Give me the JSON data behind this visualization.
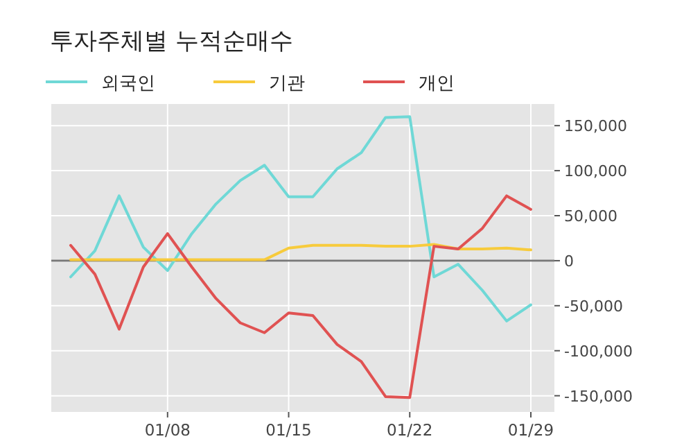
{
  "chart_data": {
    "type": "line",
    "title": "투자주체별 누적순매수",
    "categories": [
      null,
      null,
      null,
      null,
      "01/08",
      null,
      null,
      null,
      null,
      "01/15",
      null,
      null,
      null,
      null,
      "01/22",
      null,
      null,
      null,
      null,
      "01/29"
    ],
    "series": [
      {
        "name": "외국인",
        "color": "#6fd8d6",
        "values": [
          -18000,
          11000,
          72000,
          15000,
          -11000,
          30000,
          63000,
          89000,
          106000,
          71000,
          71000,
          102000,
          120000,
          159000,
          160000,
          -18000,
          -4000,
          -33000,
          -67000,
          -49000
        ]
      },
      {
        "name": "기관",
        "color": "#f7cb3c",
        "values": [
          1000,
          1000,
          1000,
          1000,
          1000,
          1000,
          1000,
          1000,
          1000,
          14000,
          17000,
          17000,
          17000,
          16000,
          16000,
          18000,
          13000,
          13000,
          14000,
          12000
        ]
      },
      {
        "name": "개인",
        "color": "#e05252",
        "values": [
          17000,
          -15000,
          -76000,
          -7000,
          30000,
          -7000,
          -42000,
          -69000,
          -80000,
          -58000,
          -61000,
          -93000,
          -112000,
          -151000,
          -152000,
          16000,
          13000,
          36000,
          72000,
          57000
        ]
      }
    ],
    "ylim": [
      -168000,
      174000
    ],
    "yticks": [
      {
        "value": 150000,
        "label": "150,000"
      },
      {
        "value": 100000,
        "label": "100,000"
      },
      {
        "value": 50000,
        "label": "50,000"
      },
      0,
      {
        "value": -50000,
        "label": "-50,000"
      },
      {
        "value": -100000,
        "label": "-100,000"
      },
      {
        "value": -150000,
        "label": "-150,000"
      }
    ],
    "ref_lines": [
      {
        "axis": "y",
        "value": 0,
        "color": "#777777"
      }
    ],
    "grid": true,
    "legend": "top left",
    "marker": "none",
    "line_style": "solid"
  }
}
